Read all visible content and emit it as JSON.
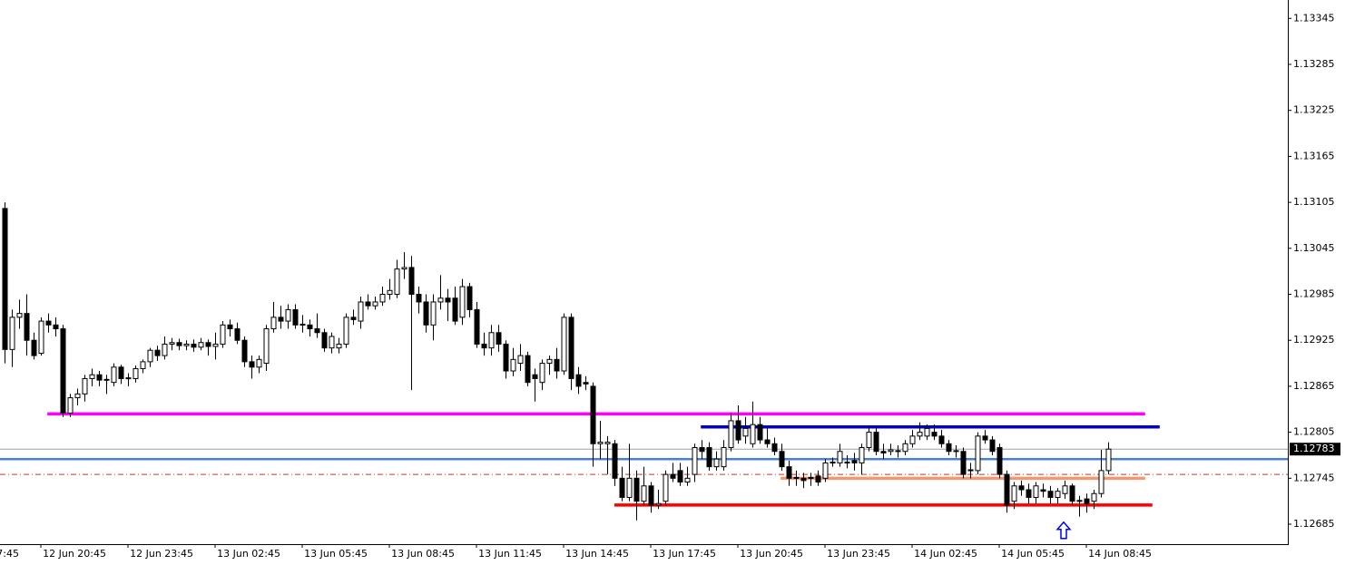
{
  "chart_data": {
    "type": "candlestick",
    "open": [
      1.13097,
      1.12913,
      1.12955,
      1.1296,
      1.12925,
      1.12908,
      1.1295,
      1.12945,
      1.1294,
      1.1283,
      1.1285,
      1.12855,
      1.12875,
      1.1288,
      1.12873,
      1.1287,
      1.1289,
      1.12875,
      1.12875,
      1.12888,
      1.12897,
      1.12912,
      1.12905,
      1.1292,
      1.12922,
      1.12918,
      1.1292,
      1.12916,
      1.12922,
      1.12917,
      1.1292,
      1.12945,
      1.1294,
      1.12925,
      1.12897,
      1.1289,
      1.12895,
      1.1294,
      1.12955,
      1.1295,
      1.12965,
      1.12945,
      1.12945,
      1.1294,
      1.12935,
      1.12915,
      1.12915,
      1.1292,
      1.12955,
      1.1295,
      1.12975,
      1.1297,
      1.12975,
      1.12985,
      1.12985,
      1.13018,
      1.1302,
      1.12985,
      1.12975,
      1.12945,
      1.12975,
      1.1298,
      1.1298,
      1.12955,
      1.12995,
      1.12965,
      1.1292,
      1.12915,
      1.12935,
      1.1292,
      1.12885,
      1.12895,
      1.12905,
      1.1288,
      1.1287,
      1.12895,
      1.129,
      1.12885,
      1.12955,
      1.1288,
      1.1287,
      1.12865,
      1.1279,
      1.1279,
      1.1279,
      1.12745,
      1.1272,
      1.12745,
      1.12715,
      1.12735,
      1.1271,
      1.12715,
      1.1275,
      1.12755,
      1.1274,
      1.1275,
      1.12785,
      1.12785,
      1.1276,
      1.1276,
      1.12785,
      1.1282,
      1.128,
      1.1279,
      1.12815,
      1.12795,
      1.1279,
      1.1278,
      1.1276,
      1.12745,
      1.12745,
      1.12745,
      1.12748,
      1.12745,
      1.12765,
      1.12765,
      1.12765,
      1.12768,
      1.12765,
      1.12785,
      1.12805,
      1.1278,
      1.1278,
      1.1278,
      1.1278,
      1.1279,
      1.128,
      1.128,
      1.12805,
      1.128,
      1.1279,
      1.1278,
      1.1278,
      1.12755,
      1.12755,
      1.128,
      1.12795,
      1.12785,
      1.1275,
      1.12715,
      1.12735,
      1.1273,
      1.1272,
      1.1273,
      1.12728,
      1.1272,
      1.12725,
      1.12735,
      1.12715,
      1.12718,
      1.12715,
      1.12725,
      1.12755
    ],
    "high": [
      1.13105,
      1.12965,
      1.12978,
      1.12985,
      1.12935,
      1.12955,
      1.1296,
      1.12955,
      1.12945,
      1.12855,
      1.12862,
      1.1288,
      1.12888,
      1.12885,
      1.1288,
      1.12895,
      1.12893,
      1.12882,
      1.12892,
      1.129,
      1.12915,
      1.12918,
      1.1293,
      1.12928,
      1.12927,
      1.12925,
      1.12926,
      1.12928,
      1.12926,
      1.12935,
      1.1295,
      1.12952,
      1.12948,
      1.1293,
      1.12905,
      1.12905,
      1.12945,
      1.12975,
      1.1297,
      1.12972,
      1.12972,
      1.12958,
      1.12952,
      1.1296,
      1.1294,
      1.12935,
      1.12928,
      1.1296,
      1.12965,
      1.12982,
      1.12985,
      1.12982,
      1.12995,
      1.13005,
      1.1303,
      1.1304,
      1.13035,
      1.12995,
      1.12985,
      1.12985,
      1.1301,
      1.12992,
      1.12995,
      1.13005,
      1.13,
      1.12975,
      1.12935,
      1.12945,
      1.12945,
      1.12925,
      1.12915,
      1.1292,
      1.1291,
      1.12888,
      1.129,
      1.12905,
      1.12915,
      1.1296,
      1.1296,
      1.1289,
      1.12878,
      1.1287,
      1.1282,
      1.128,
      1.12795,
      1.1276,
      1.1279,
      1.12755,
      1.1276,
      1.1274,
      1.1273,
      1.12755,
      1.12765,
      1.12765,
      1.1276,
      1.1279,
      1.12795,
      1.12792,
      1.1278,
      1.12795,
      1.1283,
      1.1284,
      1.12825,
      1.12845,
      1.12825,
      1.1281,
      1.12798,
      1.1279,
      1.12768,
      1.12755,
      1.12752,
      1.12752,
      1.12755,
      1.1277,
      1.12772,
      1.1279,
      1.12775,
      1.12778,
      1.1279,
      1.12812,
      1.1281,
      1.1279,
      1.1279,
      1.12788,
      1.12795,
      1.12808,
      1.12818,
      1.12815,
      1.12815,
      1.12808,
      1.12795,
      1.12788,
      1.12785,
      1.12765,
      1.12805,
      1.12808,
      1.128,
      1.1279,
      1.12755,
      1.1274,
      1.12742,
      1.12738,
      1.1274,
      1.12738,
      1.12735,
      1.12732,
      1.12742,
      1.12738,
      1.12722,
      1.12725,
      1.1273,
      1.12782,
      1.12792
    ],
    "low": [
      1.12895,
      1.1289,
      1.1294,
      1.12905,
      1.129,
      1.12905,
      1.12935,
      1.1293,
      1.12825,
      1.12825,
      1.1284,
      1.12845,
      1.12865,
      1.12865,
      1.12855,
      1.12865,
      1.12868,
      1.12865,
      1.1287,
      1.12882,
      1.1289,
      1.12898,
      1.129,
      1.12912,
      1.12912,
      1.12912,
      1.1291,
      1.12912,
      1.12905,
      1.129,
      1.12915,
      1.1293,
      1.1292,
      1.1289,
      1.12875,
      1.12882,
      1.12885,
      1.12935,
      1.1294,
      1.1294,
      1.1294,
      1.12935,
      1.1293,
      1.12928,
      1.1291,
      1.12908,
      1.12908,
      1.12915,
      1.12945,
      1.1294,
      1.12965,
      1.12965,
      1.1297,
      1.12978,
      1.1298,
      1.13005,
      1.1286,
      1.1296,
      1.12935,
      1.12925,
      1.12965,
      1.1295,
      1.12945,
      1.12945,
      1.12955,
      1.12915,
      1.12905,
      1.12905,
      1.1291,
      1.12875,
      1.12878,
      1.12885,
      1.12865,
      1.12845,
      1.1286,
      1.1288,
      1.12875,
      1.1288,
      1.1286,
      1.12855,
      1.1286,
      1.1276,
      1.1277,
      1.1275,
      1.12735,
      1.12715,
      1.12715,
      1.1269,
      1.1271,
      1.127,
      1.12705,
      1.1271,
      1.1274,
      1.12735,
      1.12735,
      1.1274,
      1.1277,
      1.12755,
      1.12755,
      1.12755,
      1.1278,
      1.1279,
      1.1279,
      1.12785,
      1.1279,
      1.12785,
      1.12775,
      1.12755,
      1.12735,
      1.12735,
      1.12732,
      1.12735,
      1.12735,
      1.1274,
      1.1276,
      1.1276,
      1.12758,
      1.12755,
      1.1275,
      1.1278,
      1.12775,
      1.1277,
      1.12775,
      1.12772,
      1.12775,
      1.12785,
      1.12795,
      1.12795,
      1.12795,
      1.12785,
      1.12775,
      1.12772,
      1.12745,
      1.12745,
      1.1275,
      1.1279,
      1.12775,
      1.12745,
      1.127,
      1.12705,
      1.12722,
      1.12712,
      1.12712,
      1.1272,
      1.12712,
      1.12712,
      1.12718,
      1.1271,
      1.12695,
      1.127,
      1.12705,
      1.1272,
      1.1275
    ],
    "close": [
      1.12913,
      1.12955,
      1.1296,
      1.12925,
      1.12905,
      1.1295,
      1.12945,
      1.1294,
      1.1283,
      1.1285,
      1.12855,
      1.12875,
      1.1288,
      1.12873,
      1.12874,
      1.1289,
      1.12875,
      1.12876,
      1.12888,
      1.12897,
      1.12912,
      1.12905,
      1.1292,
      1.12922,
      1.12918,
      1.1292,
      1.12916,
      1.12922,
      1.12917,
      1.1292,
      1.12945,
      1.1294,
      1.12925,
      1.12897,
      1.1289,
      1.129,
      1.1294,
      1.12955,
      1.1295,
      1.12965,
      1.12945,
      1.12946,
      1.1294,
      1.12935,
      1.12915,
      1.1293,
      1.1292,
      1.12955,
      1.12952,
      1.12975,
      1.1297,
      1.12975,
      1.12985,
      1.1299,
      1.13018,
      1.1302,
      1.12985,
      1.12975,
      1.12945,
      1.12975,
      1.1298,
      1.12975,
      1.1295,
      1.12995,
      1.12965,
      1.1292,
      1.12915,
      1.12935,
      1.1292,
      1.12885,
      1.129,
      1.12905,
      1.1287,
      1.12875,
      1.12895,
      1.129,
      1.12885,
      1.12955,
      1.12875,
      1.12865,
      1.12868,
      1.1279,
      1.12792,
      1.12792,
      1.12745,
      1.1272,
      1.12745,
      1.12715,
      1.12735,
      1.1271,
      1.12712,
      1.1275,
      1.12745,
      1.1274,
      1.12745,
      1.12785,
      1.1278,
      1.1276,
      1.1277,
      1.12785,
      1.1282,
      1.12795,
      1.1281,
      1.12815,
      1.12795,
      1.1279,
      1.1278,
      1.1276,
      1.12745,
      1.12746,
      1.12742,
      1.12746,
      1.1274,
      1.12765,
      1.12766,
      1.1278,
      1.12766,
      1.12765,
      1.12785,
      1.12805,
      1.1278,
      1.12778,
      1.12782,
      1.12781,
      1.1279,
      1.128,
      1.12805,
      1.1281,
      1.128,
      1.1279,
      1.1278,
      1.12781,
      1.1275,
      1.12756,
      1.128,
      1.12795,
      1.1278,
      1.1275,
      1.1271,
      1.12735,
      1.1273,
      1.1272,
      1.12735,
      1.12728,
      1.1272,
      1.12728,
      1.12735,
      1.12715,
      1.12716,
      1.12712,
      1.12725,
      1.12755,
      1.12783
    ],
    "ylim": [
      1.12659,
      1.13369
    ],
    "yticks": [
      1.13345,
      1.13285,
      1.13225,
      1.13165,
      1.13105,
      1.13045,
      1.12985,
      1.12925,
      1.12865,
      1.12805,
      1.12745,
      1.12685
    ],
    "xticks": [
      {
        "value": -7,
        "label": "7:45"
      },
      {
        "value": 5,
        "label": "12 Jun 20:45"
      },
      {
        "value": 17,
        "label": "12 Jun 23:45"
      },
      {
        "value": 29,
        "label": "13 Jun 02:45"
      },
      {
        "value": 41,
        "label": "13 Jun 05:45"
      },
      {
        "value": 53,
        "label": "13 Jun 08:45"
      },
      {
        "value": 65,
        "label": "13 Jun 11:45"
      },
      {
        "value": 77,
        "label": "13 Jun 14:45"
      },
      {
        "value": 89,
        "label": "13 Jun 17:45"
      },
      {
        "value": 101,
        "label": "13 Jun 20:45"
      },
      {
        "value": 113,
        "label": "13 Jun 23:45"
      },
      {
        "value": 125,
        "label": "14 Jun 02:45"
      },
      {
        "value": 137,
        "label": "14 Jun 05:45"
      },
      {
        "value": 149,
        "label": "14 Jun 08:45"
      }
    ],
    "current_price": 1.12783,
    "levels": [
      {
        "value": 1.12829,
        "color": "#ff00ff",
        "x": [
          5.9,
          157.1
        ]
      },
      {
        "value": 1.12812,
        "color": "#0000cd",
        "x": [
          95.9,
          159.1
        ]
      },
      {
        "value": 1.12745,
        "color": "#f4966e",
        "x": [
          106.9,
          157.1
        ]
      },
      {
        "value": 1.1271,
        "color": "#ff0000",
        "x": [
          84,
          158.1
        ]
      },
      {
        "value": 1.1277,
        "color": "#4a7fd4"
      }
    ],
    "dashed_level": {
      "value": 1.1275,
      "color": "#c0392b"
    },
    "arrow": {
      "x": 146,
      "value": 1.12677,
      "color": "#0000ff"
    }
  }
}
